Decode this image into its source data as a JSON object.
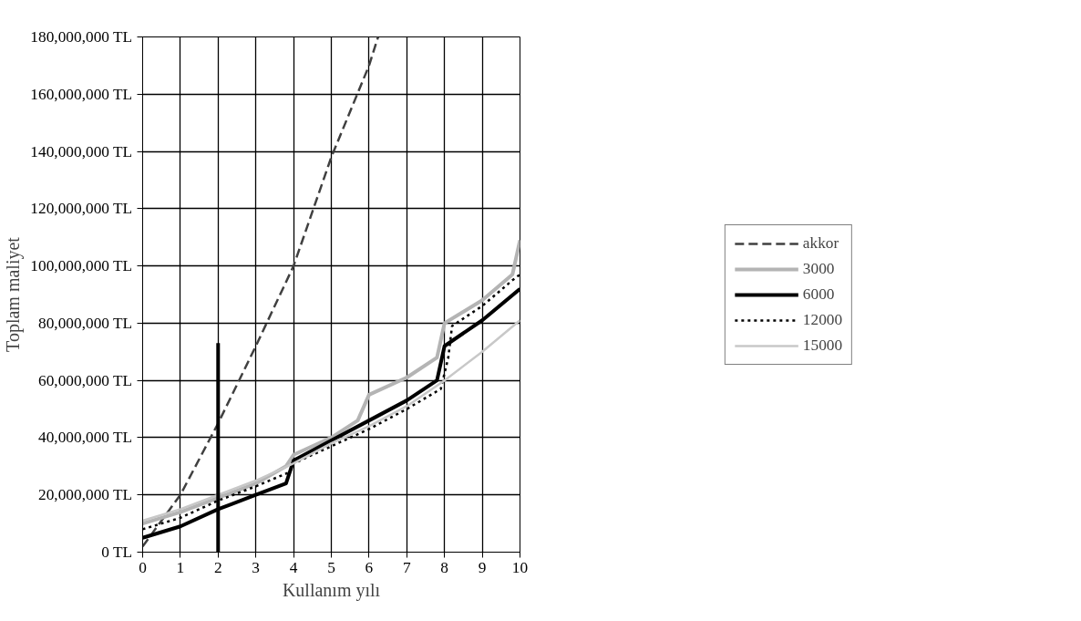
{
  "chart_data": {
    "type": "line",
    "xlabel": "Kullanım yılı",
    "ylabel": "Toplam maliyet",
    "xlim": [
      0,
      10
    ],
    "xticks": [
      0,
      1,
      2,
      3,
      4,
      5,
      6,
      7,
      8,
      9,
      10
    ],
    "ylim": [
      0,
      180000000
    ],
    "yticks": [
      {
        "value": 0,
        "label": "0 TL"
      },
      {
        "value": 20000000,
        "label": "20,000,000 TL"
      },
      {
        "value": 40000000,
        "label": "40,000,000 TL"
      },
      {
        "value": 60000000,
        "label": "60,000,000 TL"
      },
      {
        "value": 80000000,
        "label": "80,000,000 TL"
      },
      {
        "value": 100000000,
        "label": "100,000,000 TL"
      },
      {
        "value": 120000000,
        "label": "120,000,000 TL"
      },
      {
        "value": 140000000,
        "label": "140,000,000 TL"
      },
      {
        "value": 160000000,
        "label": "160,000,000 TL"
      },
      {
        "value": 180000000,
        "label": "180,000,000 TL"
      }
    ],
    "grid": true,
    "legend": "right",
    "marker": "none",
    "series": [
      {
        "name": "akkor",
        "color": "#404040",
        "line_style": "dashed",
        "x": [
          0,
          1,
          2,
          3,
          4,
          5,
          6,
          6.24
        ],
        "values": [
          2000000,
          20000000,
          45000000,
          72000000,
          100000000,
          138000000,
          170000000,
          180000000
        ]
      },
      {
        "name": "3000",
        "color": "#b4b4b4",
        "line_style": "solid",
        "x": [
          0,
          1,
          2,
          3,
          3.8,
          4,
          5,
          5.7,
          6,
          7,
          7.8,
          8,
          9,
          9.8,
          10
        ],
        "values": [
          10000000,
          14000000,
          19000000,
          24000000,
          30000000,
          34000000,
          40000000,
          46000000,
          55000000,
          61000000,
          68000000,
          80000000,
          88000000,
          97000000,
          109000000
        ]
      },
      {
        "name": "6000",
        "color": "#000000",
        "line_style": "solid",
        "x": [
          0,
          1,
          2,
          3,
          3.8,
          4,
          5,
          6,
          7,
          7.8,
          8,
          9,
          10
        ],
        "values": [
          5000000,
          9000000,
          15000000,
          20000000,
          24000000,
          32000000,
          39000000,
          46000000,
          53000000,
          60000000,
          72000000,
          81000000,
          92000000
        ]
      },
      {
        "name": "12000",
        "color": "#000000",
        "line_style": "dotted",
        "x": [
          0,
          1,
          2,
          3,
          3.9,
          4,
          5,
          6,
          7,
          7.9,
          8.1,
          8.2,
          9,
          9.8,
          10
        ],
        "values": [
          8000000,
          12000000,
          18000000,
          23000000,
          28000000,
          31000000,
          37000000,
          43000000,
          50000000,
          57000000,
          68000000,
          79000000,
          86000000,
          95000000,
          97000000
        ]
      },
      {
        "name": "15000",
        "color": "#c8c8c8",
        "line_style": "solid",
        "x": [
          0,
          1,
          2,
          3,
          4,
          5,
          6,
          7,
          8,
          9,
          10
        ],
        "values": [
          11000000,
          15000000,
          20000000,
          25000000,
          31000000,
          38000000,
          44000000,
          51000000,
          60000000,
          70000000,
          81000000
        ]
      },
      {
        "color": "#000000",
        "line_style": "solid",
        "x": [
          2,
          2
        ],
        "values": [
          0,
          73000000
        ]
      }
    ]
  }
}
